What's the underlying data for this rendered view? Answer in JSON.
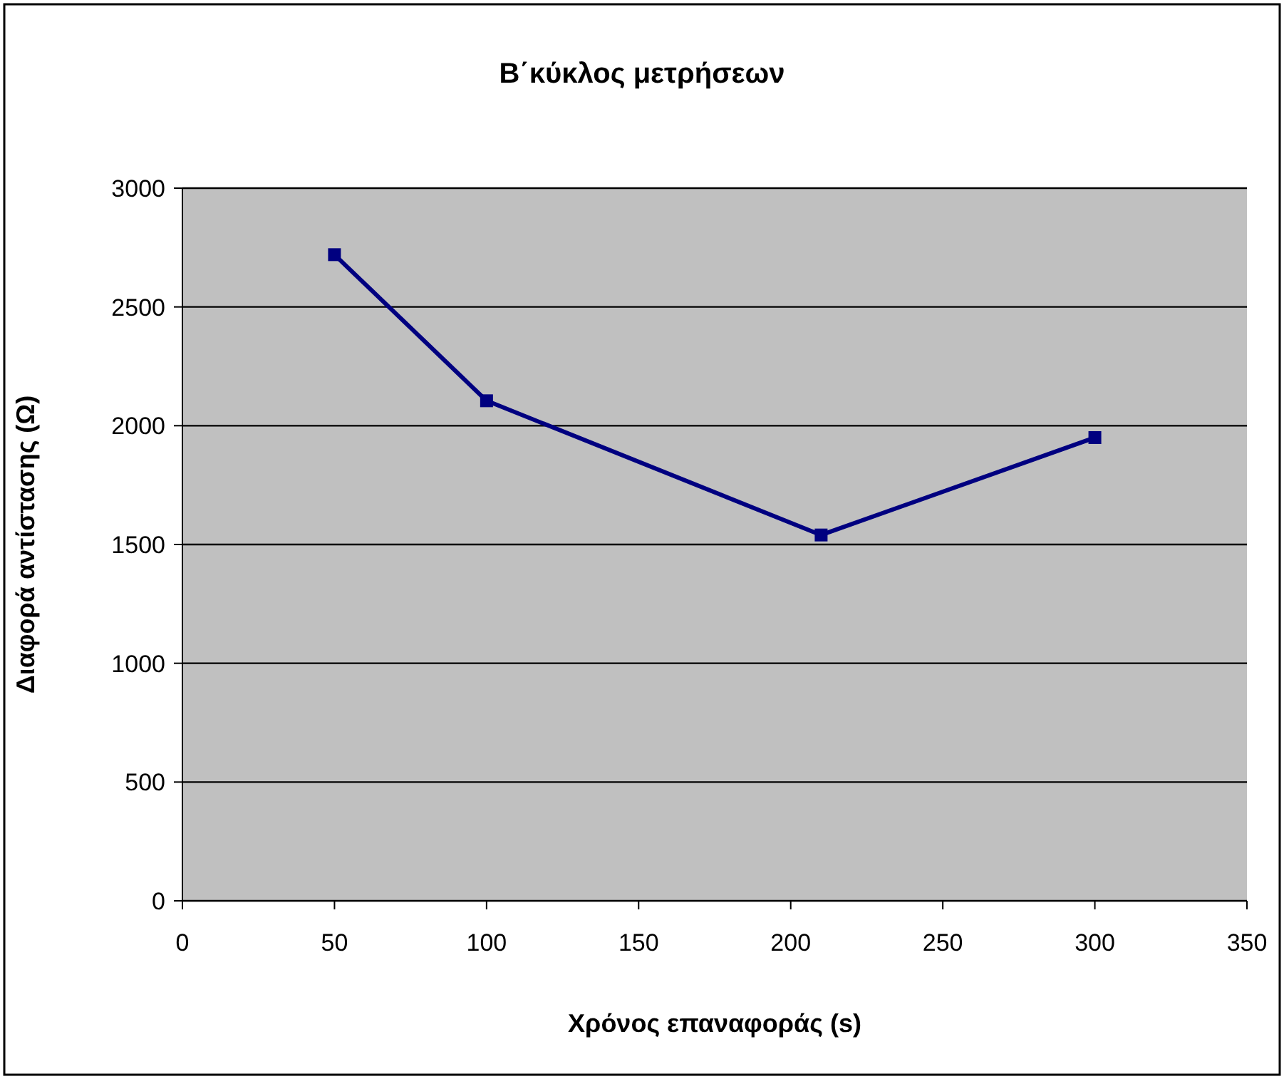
{
  "chart_data": {
    "type": "line",
    "title": "Β΄κύκλος μετρήσεων",
    "xlabel": "Χρόνος επαναφοράς (s)",
    "ylabel": "Διαφορά αντίστασης (Ω)",
    "x": [
      50,
      100,
      210,
      300
    ],
    "series": [
      {
        "color": "#000080",
        "values": [
          2720,
          2105,
          1540,
          1950
        ]
      }
    ],
    "xlim": [
      0,
      350
    ],
    "xticks": [
      0,
      50,
      100,
      150,
      200,
      250,
      300,
      350
    ],
    "ylim": [
      0,
      3000
    ],
    "yticks": [
      0,
      500,
      1000,
      1500,
      2000,
      2500,
      3000
    ],
    "grid": "y",
    "marker": "square",
    "line_style": "solid"
  }
}
